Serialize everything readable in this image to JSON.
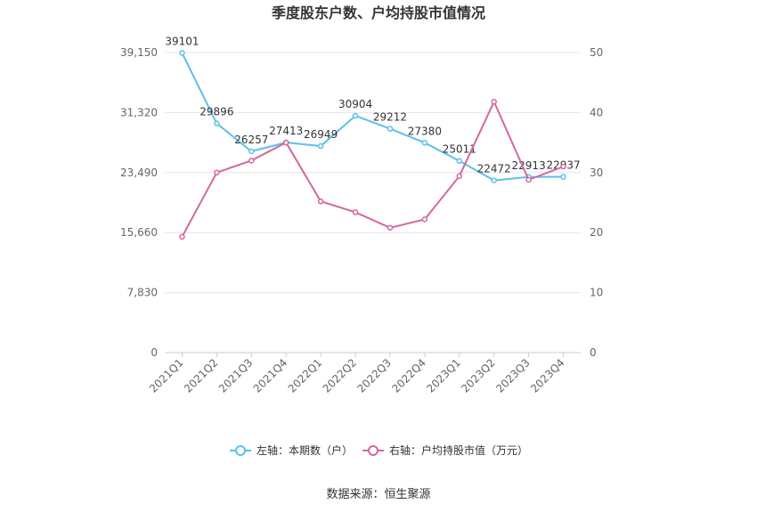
{
  "chart_data": {
    "type": "line",
    "title": "季度股东户数、户均持股市值情况",
    "categories": [
      "2021Q1",
      "2021Q2",
      "2021Q3",
      "2021Q4",
      "2022Q1",
      "2022Q2",
      "2022Q3",
      "2022Q4",
      "2023Q1",
      "2023Q2",
      "2023Q3",
      "2023Q4"
    ],
    "series": [
      {
        "name": "左轴：本期数（户）",
        "axis": "left",
        "color": "#5bc0eb",
        "values": [
          39101,
          29896,
          26257,
          27413,
          26949,
          30904,
          29212,
          27380,
          25011,
          22472,
          22913,
          22937
        ],
        "labels": [
          "39101",
          "29896",
          "26257",
          "27413",
          "26949",
          "30904",
          "29212",
          "27380",
          "25011",
          "22472",
          "22913",
          "22937"
        ]
      },
      {
        "name": "右轴：户均持股市值（万元）",
        "axis": "right",
        "color": "#d4679e",
        "values": [
          19.3,
          30.0,
          32.0,
          35.0,
          25.2,
          23.4,
          20.8,
          22.2,
          29.4,
          41.8,
          28.8,
          31.0
        ]
      }
    ],
    "left_axis": {
      "min": 0,
      "max": 39150,
      "ticks": [
        0,
        7830,
        15660,
        23490,
        31320,
        39150
      ],
      "tick_labels": [
        "0",
        "7,830",
        "15,660",
        "23,490",
        "31,320",
        "39,150"
      ]
    },
    "right_axis": {
      "min": 0,
      "max": 50,
      "ticks": [
        0,
        10,
        20,
        30,
        40,
        50
      ],
      "tick_labels": [
        "0",
        "10",
        "20",
        "30",
        "40",
        "50"
      ]
    },
    "grid": true,
    "legend_position": "bottom"
  },
  "source": "数据来源：恒生聚源"
}
